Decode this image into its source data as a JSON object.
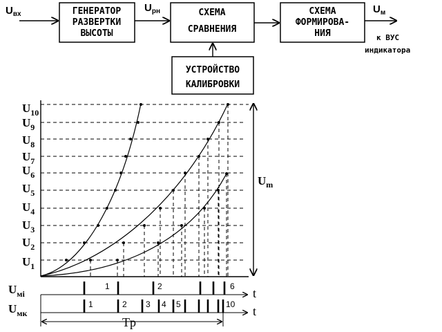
{
  "blocks": {
    "generator": [
      "ГЕНЕРАТОР",
      "РАЗВЕРТКИ",
      "ВЫСОТЫ"
    ],
    "comparison": [
      "СХЕМА",
      "СРАВНЕНИЯ"
    ],
    "forming": [
      "СХЕМА",
      "ФОРМИРОВА-",
      "НИЯ"
    ],
    "calibration": [
      "УСТРОЙСТВО",
      "КАЛИБРОВКИ"
    ]
  },
  "signals": {
    "input": {
      "main": "U",
      "sub": "вх"
    },
    "ramp": {
      "main": "U",
      "sub": "рн"
    },
    "output": {
      "main": "U",
      "sub": "м"
    },
    "destination": [
      "к ВУС",
      "индикатора"
    ]
  },
  "levels": [
    {
      "main": "U",
      "sub": "1"
    },
    {
      "main": "U",
      "sub": "2"
    },
    {
      "main": "U",
      "sub": "3"
    },
    {
      "main": "U",
      "sub": "4"
    },
    {
      "main": "U",
      "sub": "5"
    },
    {
      "main": "U",
      "sub": "6"
    },
    {
      "main": "U",
      "sub": "7"
    },
    {
      "main": "U",
      "sub": "8"
    },
    {
      "main": "U",
      "sub": "9"
    },
    {
      "main": "U",
      "sub": "10"
    }
  ],
  "amplitude_label": {
    "main": "U",
    "sub": "m"
  },
  "pulse_rows": [
    {
      "main": "U",
      "sub": "мi",
      "tick_labels": [
        "1",
        "2",
        "6"
      ]
    },
    {
      "main": "U",
      "sub": "мк",
      "tick_labels": [
        "1",
        "2",
        "3",
        "4",
        "5",
        "10"
      ]
    }
  ],
  "time_label": "t",
  "period_label": "Tр"
}
